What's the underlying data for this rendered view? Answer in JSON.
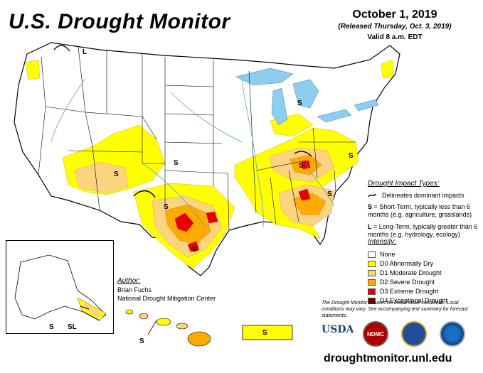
{
  "header": {
    "title": "U.S. Drought Monitor",
    "date": "October 1, 2019",
    "released": "(Released Thursday, Oct. 3, 2019)",
    "valid": "Valid 8 a.m. EDT"
  },
  "impact_types": {
    "heading": "Drought Impact Types:",
    "delineates": "Delineates dominant impacts",
    "short_term_code": "S",
    "short_term_text": "= Short-Term, typically less than 6 months (e.g. agriculture, grasslands)",
    "long_term_code": "L",
    "long_term_text": "= Long-Term, typically greater than 6 months (e.g. hydrology, ecology)"
  },
  "intensity": {
    "heading": "Intensity:",
    "levels": [
      {
        "label": "None",
        "color": "#ffffff"
      },
      {
        "label": "D0 Abnormally Dry",
        "color": "#ffff00"
      },
      {
        "label": "D1 Moderate Drought",
        "color": "#fcd37f"
      },
      {
        "label": "D2 Severe Drought",
        "color": "#ffaa00"
      },
      {
        "label": "D3 Extreme Drought",
        "color": "#e60000"
      },
      {
        "label": "D4 Exceptional Drought",
        "color": "#730000"
      }
    ]
  },
  "note": "The Drought Monitor focuses on broad-scale conditions. Local conditions may vary. See accompanying text summary for forecast statements.",
  "author": {
    "heading": "Author:",
    "name": "Brian Fuchs",
    "org": "National Drought Mitigation Center"
  },
  "map_labels": {
    "s": "S",
    "l": "L",
    "sl": "SL"
  },
  "logos": {
    "usda": "USDA",
    "ndmc": "NDMC"
  },
  "website": "droughtmonitor.unl.edu",
  "colors": {
    "water": "#8ccdf0",
    "state_border": "#000000",
    "river": "#5aa0d8"
  }
}
